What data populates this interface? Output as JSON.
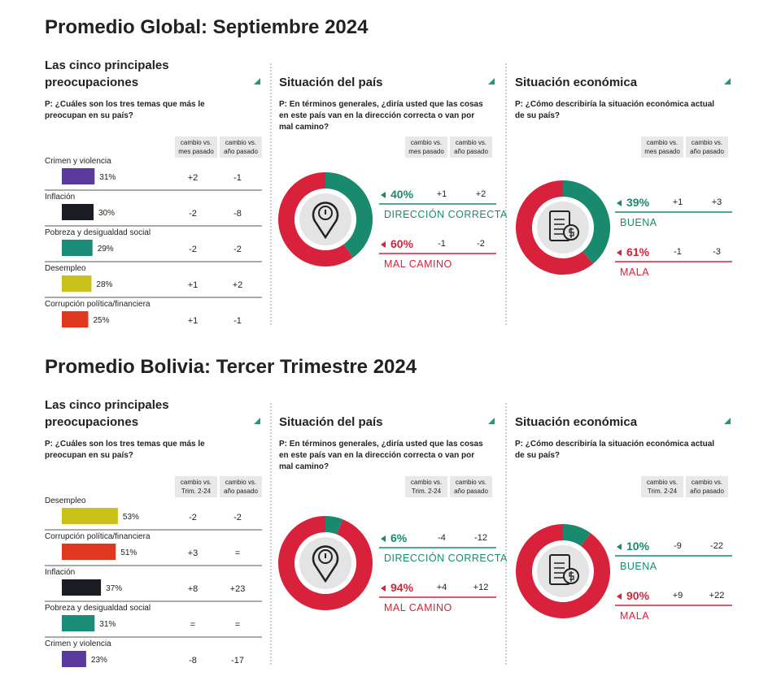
{
  "sections": [
    {
      "title": "Promedio Global: Septiembre 2024",
      "concerns": {
        "title": "Las cinco principales preocupaciones",
        "question": "P: ¿Cuáles son los tres temas que más le preocupan en su país?",
        "headers": [
          "cambio vs. mes pasado",
          "cambio vs. año pasado"
        ],
        "items": [
          {
            "name": "Crimen y violencia",
            "value": 31,
            "label": "31%",
            "color": "#5b3a9e",
            "changes": [
              "+2",
              "-1"
            ]
          },
          {
            "name": "Inflación",
            "value": 30,
            "label": "30%",
            "color": "#1c1c24",
            "changes": [
              "-2",
              "-8"
            ]
          },
          {
            "name": "Pobreza y desigualdad social",
            "value": 29,
            "label": "29%",
            "color": "#1b8c78",
            "changes": [
              "-2",
              "-2"
            ]
          },
          {
            "name": "Desempleo",
            "value": 28,
            "label": "28%",
            "color": "#c9c11a",
            "changes": [
              "+1",
              "+2"
            ]
          },
          {
            "name": "Corrupción política/financiera",
            "value": 25,
            "label": "25%",
            "color": "#e0381f",
            "changes": [
              "+1",
              "-1"
            ]
          }
        ]
      },
      "country": {
        "title": "Situación del país",
        "question": "P: En términos generales, ¿diría usted que las cosas en este país van en la dirección correcta o van por mal camino?",
        "headers": [
          "cambio vs. mes pasado",
          "cambio vs. año pasado"
        ],
        "items": [
          {
            "name": "DIRECCIÓN CORRECTA",
            "value": 40,
            "label": "40%",
            "color": "#1a8a6e",
            "changes": [
              "+1",
              "+2"
            ]
          },
          {
            "name": "MAL CAMINO",
            "value": 60,
            "label": "60%",
            "color": "#d8213a",
            "changes": [
              "-1",
              "-2"
            ]
          }
        ]
      },
      "economy": {
        "title": "Situación económica",
        "question": "P: ¿Cómo describiría la situación económica actual de su país?",
        "headers": [
          "cambio vs. mes pasado",
          "cambio vs. año pasado"
        ],
        "items": [
          {
            "name": "BUENA",
            "value": 39,
            "label": "39%",
            "color": "#1a8a6e",
            "changes": [
              "+1",
              "+3"
            ]
          },
          {
            "name": "MALA",
            "value": 61,
            "label": "61%",
            "color": "#d8213a",
            "changes": [
              "-1",
              "-3"
            ]
          }
        ]
      }
    },
    {
      "title": "Promedio Bolivia: Tercer Trimestre 2024",
      "concerns": {
        "title": "Las cinco principales preocupaciones",
        "question": "P: ¿Cuáles son los tres temas que más le preocupan en su país?",
        "headers": [
          "cambio vs. Trim. 2-24",
          "cambio vs. año pasado"
        ],
        "items": [
          {
            "name": "Desempleo",
            "value": 53,
            "label": "53%",
            "color": "#c9c11a",
            "changes": [
              "-2",
              "-2"
            ]
          },
          {
            "name": "Corrupción política/financiera",
            "value": 51,
            "label": "51%",
            "color": "#e0381f",
            "changes": [
              "+3",
              "="
            ]
          },
          {
            "name": "Inflación",
            "value": 37,
            "label": "37%",
            "color": "#1c1c24",
            "changes": [
              "+8",
              "+23"
            ]
          },
          {
            "name": "Pobreza y desigualdad social",
            "value": 31,
            "label": "31%",
            "color": "#1b8c78",
            "changes": [
              "=",
              "="
            ]
          },
          {
            "name": "Crimen y violencia",
            "value": 23,
            "label": "23%",
            "color": "#5b3a9e",
            "changes": [
              "-8",
              "-17"
            ]
          }
        ]
      },
      "country": {
        "title": "Situación del país",
        "question": "P: En términos generales, ¿diría usted que las cosas en este país van en la dirección correcta o van por mal camino?",
        "headers": [
          "cambio vs. Trim. 2-24",
          "cambio vs. año pasado"
        ],
        "items": [
          {
            "name": "DIRECCIÓN CORRECTA",
            "value": 6,
            "label": "6%",
            "color": "#1a8a6e",
            "changes": [
              "-4",
              "-12"
            ]
          },
          {
            "name": "MAL CAMINO",
            "value": 94,
            "label": "94%",
            "color": "#d8213a",
            "changes": [
              "+4",
              "+12"
            ]
          }
        ]
      },
      "economy": {
        "title": "Situación económica",
        "question": "P: ¿Cómo describiría la situación económica actual de su país?",
        "headers": [
          "cambio vs. Trim. 2-24",
          "cambio vs. año pasado"
        ],
        "items": [
          {
            "name": "BUENA",
            "value": 10,
            "label": "10%",
            "color": "#1a8a6e",
            "changes": [
              "-9",
              "-22"
            ]
          },
          {
            "name": "MALA",
            "value": 90,
            "label": "90%",
            "color": "#d8213a",
            "changes": [
              "+9",
              "+22"
            ]
          }
        ]
      }
    }
  ]
}
